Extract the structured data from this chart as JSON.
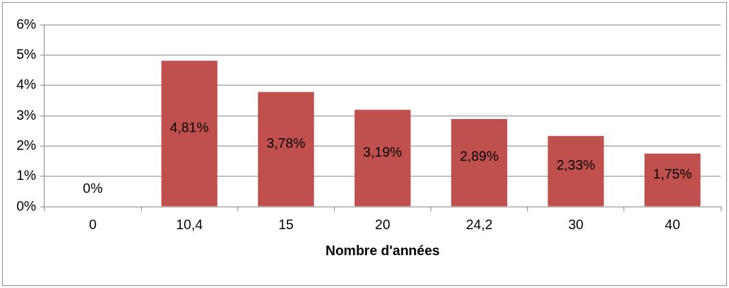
{
  "chart_data": {
    "type": "bar",
    "xlabel": "Nombre d'années",
    "categories": [
      "0",
      "10,4",
      "15",
      "20",
      "24,2",
      "30",
      "40"
    ],
    "values": [
      0,
      4.81,
      3.78,
      3.19,
      2.89,
      2.33,
      1.75
    ],
    "value_labels": [
      "0%",
      "4,81%",
      "3,78%",
      "3,19%",
      "2,89%",
      "2,33%",
      "1,75%"
    ],
    "color": "#c0504d",
    "ylim": [
      0,
      6
    ],
    "yticks": [
      {
        "value": 0,
        "label": "0%"
      },
      {
        "value": 1,
        "label": "1%"
      },
      {
        "value": 2,
        "label": "2%"
      },
      {
        "value": 3,
        "label": "3%"
      },
      {
        "value": 4,
        "label": "4%"
      },
      {
        "value": 5,
        "label": "5%"
      },
      {
        "value": 6,
        "label": "6%"
      }
    ],
    "grid": "y",
    "legend": false
  }
}
